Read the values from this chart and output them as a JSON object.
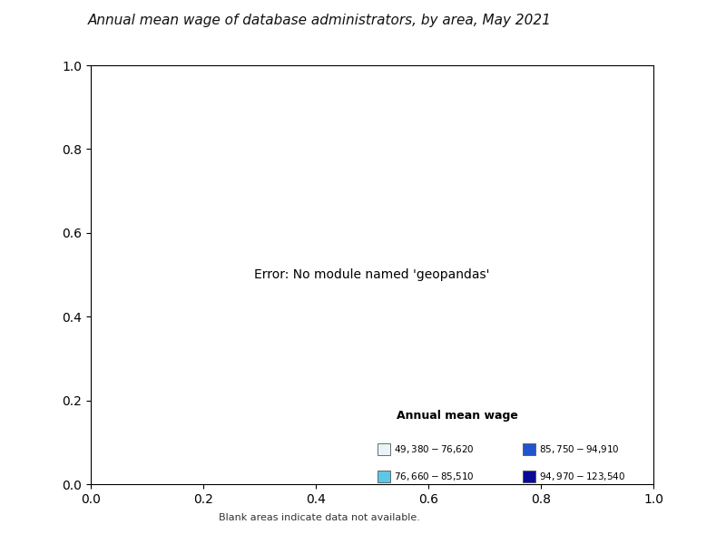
{
  "title": "Annual mean wage of database administrators, by area, May 2021",
  "title_fontsize": 11,
  "legend_title": "Annual mean wage",
  "legend_items": [
    {
      "label": "$49,380 - $76,620",
      "color": "#e8f4f8"
    },
    {
      "label": "$76,660 - $85,510",
      "color": "#5bc8e8"
    },
    {
      "label": "$85,750 - $94,910",
      "color": "#2255cc"
    },
    {
      "label": "$94,970 - $123,540",
      "color": "#0a0a99"
    }
  ],
  "blank_note": "Blank areas indicate data not available.",
  "background_color": "#ffffff",
  "border_color": "#444444",
  "border_linewidth": 0.4,
  "figsize": [
    8.0,
    6.0
  ],
  "dpi": 100,
  "color_tier1": "#e8f4f8",
  "color_tier2": "#5bc8e8",
  "color_tier3": "#2255cc",
  "color_tier4": "#0a0a99",
  "color_nodata": "#ffffff"
}
